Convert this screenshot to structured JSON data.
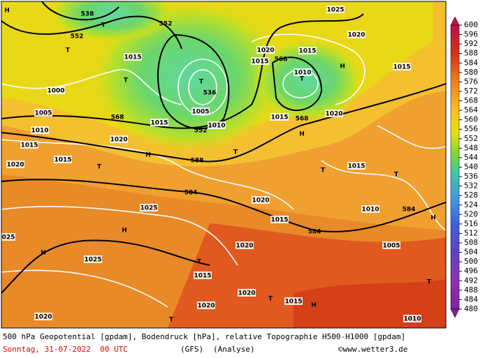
{
  "map_labels": [
    "538",
    "552",
    "552",
    "536",
    "552",
    "568",
    "588",
    "584",
    "568",
    "568",
    "584",
    "584",
    "H",
    "H",
    "H",
    "H",
    "H",
    "H",
    "H",
    "H",
    "T",
    "T",
    "T",
    "T",
    "T",
    "T",
    "T",
    "T",
    "T",
    "T",
    "T",
    "T",
    "T",
    "1000",
    "1005",
    "1010",
    "1015",
    "1020",
    "1015",
    "1020",
    "1025",
    "1025",
    "1020",
    "1015",
    "1020",
    "1015",
    "1025",
    "1020",
    "1015",
    "1010",
    "1015",
    "1005",
    "1010",
    "1015",
    "1015",
    "1020",
    "1015",
    "1020",
    "1015",
    "1020",
    "1015",
    "1020",
    "1015",
    "1020",
    "1010",
    "1005",
    "1010",
    "025"
  ],
  "legend": {
    "ticks": [
      600,
      596,
      592,
      588,
      584,
      580,
      576,
      572,
      568,
      564,
      560,
      556,
      552,
      548,
      544,
      540,
      536,
      532,
      528,
      524,
      520,
      516,
      512,
      508,
      504,
      500,
      496,
      492,
      488,
      484,
      480
    ]
  },
  "footer": {
    "description": "500 hPa Geopotential [gpdam], Bodendruck [hPa], relative Topographie H500-H1000 [gpdam]",
    "date": "Sonntag, 31-07-2022  00 UTC",
    "model": "(GFS)",
    "run": "(Analyse)",
    "source": "©www.wetter3.de"
  }
}
